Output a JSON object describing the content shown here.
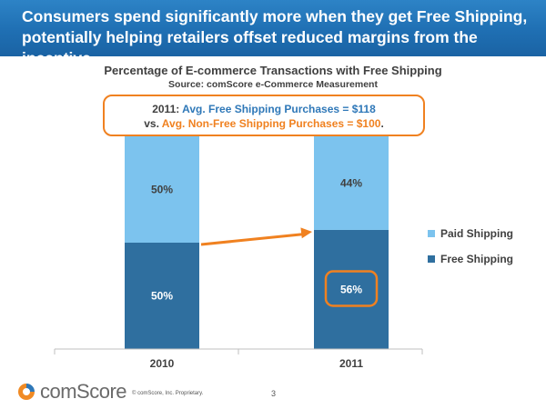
{
  "slide": {
    "headline": "Consumers spend significantly more when they get Free Shipping, potentially helping retailers offset reduced margins from the incentive",
    "page_number": "3",
    "copyright": "© comScore, Inc.    Proprietary."
  },
  "callout": {
    "line1_prefix": "2011: ",
    "line1_highlight": "Avg. Free Shipping Purchases = $118",
    "line2_prefix": "vs. ",
    "line2_highlight": "Avg. Non-Free Shipping Purchases = $100",
    "line2_suffix": "."
  },
  "logo": {
    "text": "comScore",
    "mark": "comscore-logo-icon"
  },
  "colors": {
    "banner": "#1f6fb3",
    "free_shipping": "#2f6f9f",
    "paid_shipping": "#7cc3ee",
    "accent_orange": "#f08120",
    "accent_blue": "#2f78b8"
  },
  "chart_data": {
    "type": "bar",
    "stacked": true,
    "percent": true,
    "title": "Percentage of E-commerce Transactions with Free Shipping",
    "subtitle": "Source: comScore e-Commerce Measurement",
    "categories": [
      "2010",
      "2011"
    ],
    "series": [
      {
        "name": "Free Shipping",
        "values": [
          50,
          56
        ],
        "labels": [
          "50%",
          "56%"
        ],
        "color": "#2f6f9f"
      },
      {
        "name": "Paid Shipping",
        "values": [
          50,
          44
        ],
        "labels": [
          "50%",
          "44%"
        ],
        "color": "#7cc3ee"
      }
    ],
    "ylim": [
      0,
      100
    ],
    "grid": false,
    "legend_position": "right",
    "legend_order": [
      "Paid Shipping",
      "Free Shipping"
    ],
    "annotations": [
      "arrow from 2010 Free Shipping to 2011 Free Shipping",
      "highlight box around 2011 Free Shipping value"
    ]
  }
}
